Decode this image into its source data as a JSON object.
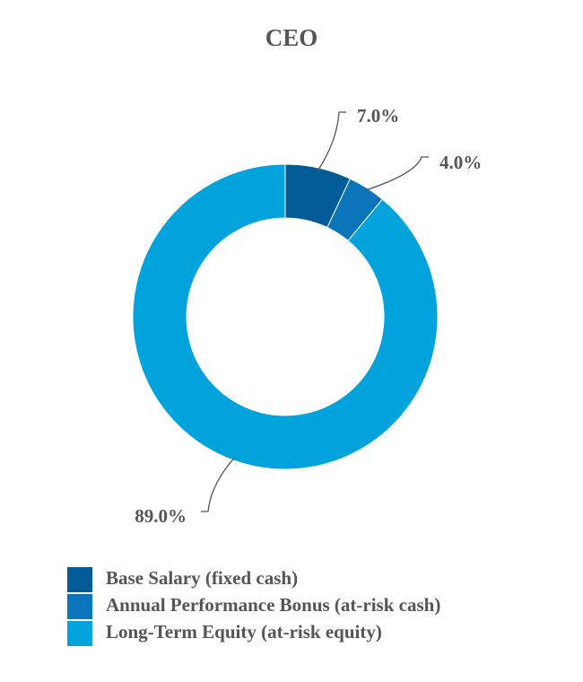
{
  "chart_data": {
    "type": "donut",
    "title": "CEO",
    "categories": [
      "Base Salary (fixed cash)",
      "Annual Performance Bonus (at-risk cash)",
      "Long-Term Equity (at-risk equity)"
    ],
    "values": [
      7,
      4,
      89
    ],
    "value_labels": [
      "7.0%",
      "4.0%",
      "89.0%"
    ],
    "colors": [
      "#005b96",
      "#0a76b9",
      "#00a3dc"
    ]
  }
}
